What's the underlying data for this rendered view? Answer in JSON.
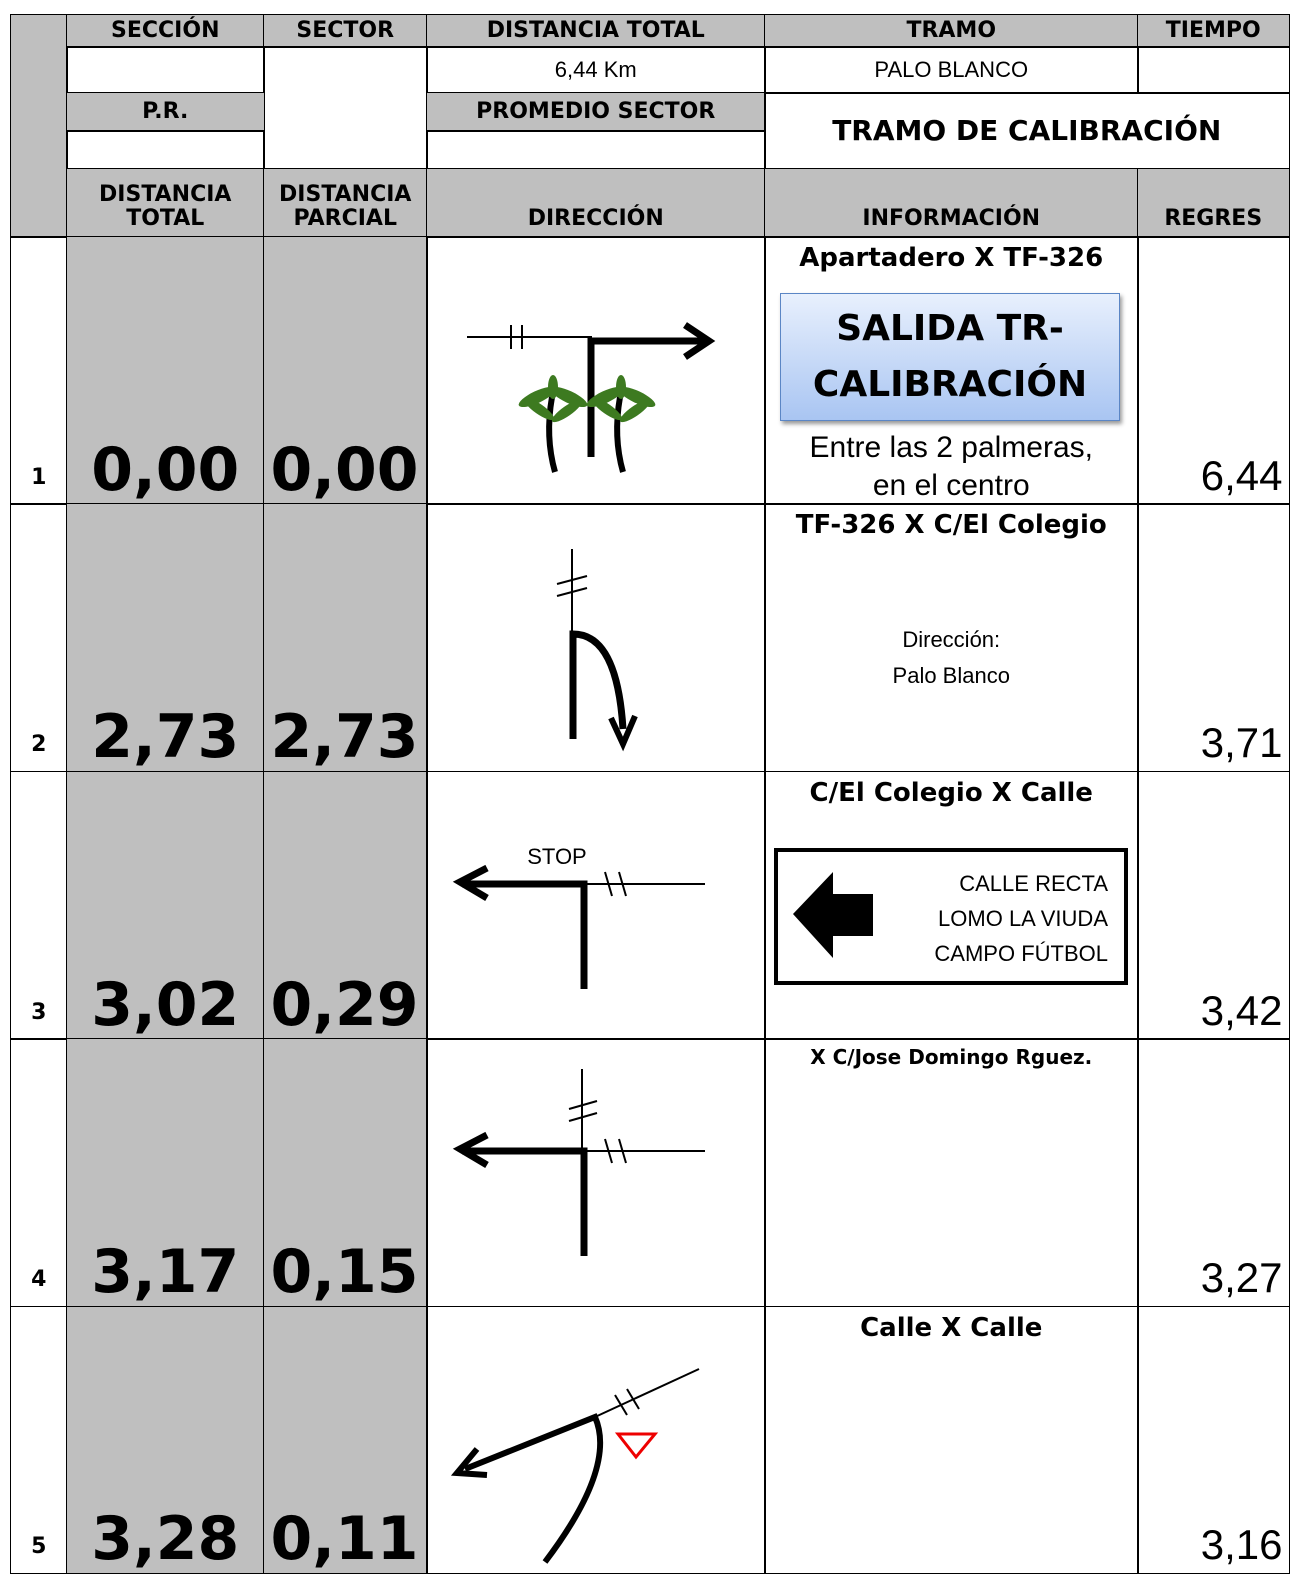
{
  "header": {
    "columns": [
      "SECCIÓN",
      "SECTOR",
      "DISTANCIA TOTAL",
      "TRAMO",
      "TIEMPO"
    ],
    "distance_total": "6,44 Km",
    "tramo": "PALO BLANCO",
    "pr_label": "P.R.",
    "promedio_label": "PROMEDIO SECTOR",
    "tramo_name": "TRAMO DE CALIBRACIÓN",
    "col_headers": [
      [
        "DISTANCIA",
        "TOTAL"
      ],
      [
        "DISTANCIA",
        "PARCIAL"
      ],
      [
        "DIRECCIÓN"
      ],
      [
        "INFORMACIÓN"
      ],
      [
        "REGRES"
      ]
    ]
  },
  "rows": [
    {
      "number": "1",
      "total": "0,00",
      "partial": "0,00",
      "info_title": "Apartadero X TF-326",
      "info_box": [
        "SALIDA TR-",
        "CALIBRACIÓN"
      ],
      "info_note": [
        "Entre las 2 palmeras,",
        "en el centro"
      ],
      "regres": "6,44"
    },
    {
      "number": "2",
      "total": "2,73",
      "partial": "2,73",
      "info_title": "TF-326 X C/El Colegio",
      "info_note": [
        "Dirección:",
        "Palo Blanco"
      ],
      "regres": "3,71"
    },
    {
      "number": "3",
      "total": "3,02",
      "partial": "0,29",
      "direction_label": "STOP",
      "info_title": "C/El Colegio X Calle",
      "sign_lines": [
        "CALLE RECTA",
        "LOMO LA VIUDA",
        "CAMPO FÚTBOL"
      ],
      "regres": "3,42"
    },
    {
      "number": "4",
      "total": "3,17",
      "partial": "0,15",
      "info_title": "X C/Jose Domingo Rguez.",
      "regres": "3,27"
    },
    {
      "number": "5",
      "total": "3,28",
      "partial": "0,11",
      "info_title": "Calle X Calle",
      "regres": "3,16"
    }
  ]
}
